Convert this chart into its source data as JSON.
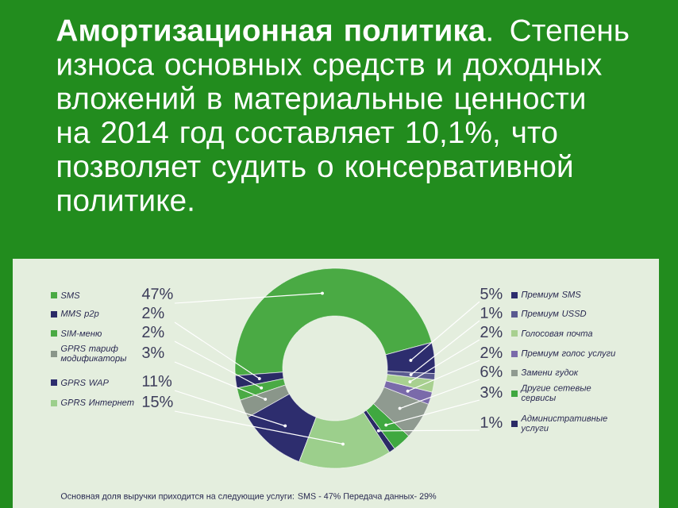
{
  "chart_data": {
    "type": "donut",
    "title": "**Амортизационная политика**. Степень износа основных средств и доходных вложений в материальные ценности на 2014 год составляет 10,1%, что позволяет судить о консервативной политике.",
    "categories": [
      "SMS",
      "MMS p2p",
      "SIM-меню",
      "GPRS тариф модификаторы",
      "GPRS WAP",
      "GPRS Интернет",
      "Административные услуги",
      "Другие сетевые сервисы",
      "Замени гудок",
      "Премиум голос услуги",
      "Голосовая почта",
      "Премиум USSD",
      "Премиум SMS"
    ],
    "values": [
      47,
      2,
      2,
      3,
      11,
      15,
      1,
      3,
      6,
      2,
      2,
      1,
      5
    ],
    "value_labels": [
      "47%",
      "2%",
      "2%",
      "3%",
      "11%",
      "15%",
      "1%",
      "3%",
      "6%",
      "2%",
      "2%",
      "1%",
      "5%"
    ],
    "colors": [
      "#4aaa44",
      "#2a2a66",
      "#4aaa44",
      "#8a968a",
      "#2d2d6e",
      "#9ccf8c",
      "#2a2a66",
      "#3fa840",
      "#8f9a90",
      "#7a6aaa",
      "#a8d090",
      "#5a5a90",
      "#2d2d6e"
    ],
    "legend": "left",
    "annotations": [
      "Основная доля выручки приходится на следующие услуги: SMS - 47% Передача данных- 29%"
    ]
  }
}
